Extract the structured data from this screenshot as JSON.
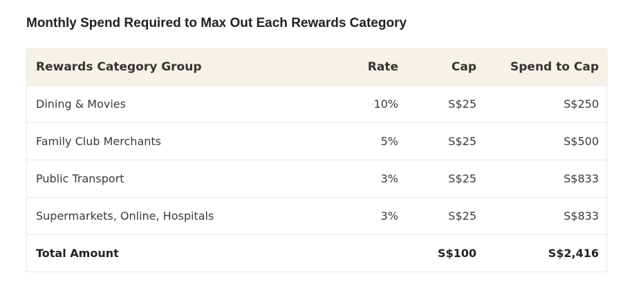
{
  "title": "Monthly Spend Required to Max Out Each Rewards Category",
  "table": {
    "headers": {
      "group": "Rewards Category Group",
      "rate": "Rate",
      "cap": "Cap",
      "spend": "Spend to Cap"
    },
    "rows": [
      {
        "group": "Dining & Movies",
        "rate": "10%",
        "cap": "S$25",
        "spend": "S$250"
      },
      {
        "group": "Family Club Merchants",
        "rate": "5%",
        "cap": "S$25",
        "spend": "S$500"
      },
      {
        "group": "Public Transport",
        "rate": "3%",
        "cap": "S$25",
        "spend": "S$833"
      },
      {
        "group": "Supermarkets, Online, Hospitals",
        "rate": "3%",
        "cap": "S$25",
        "spend": "S$833"
      }
    ],
    "total": {
      "label": "Total Amount",
      "rate": "",
      "cap": "S$100",
      "spend": "S$2,416"
    }
  },
  "colors": {
    "header_bg": "#f7f2e7",
    "border": "#e6e6e6"
  }
}
